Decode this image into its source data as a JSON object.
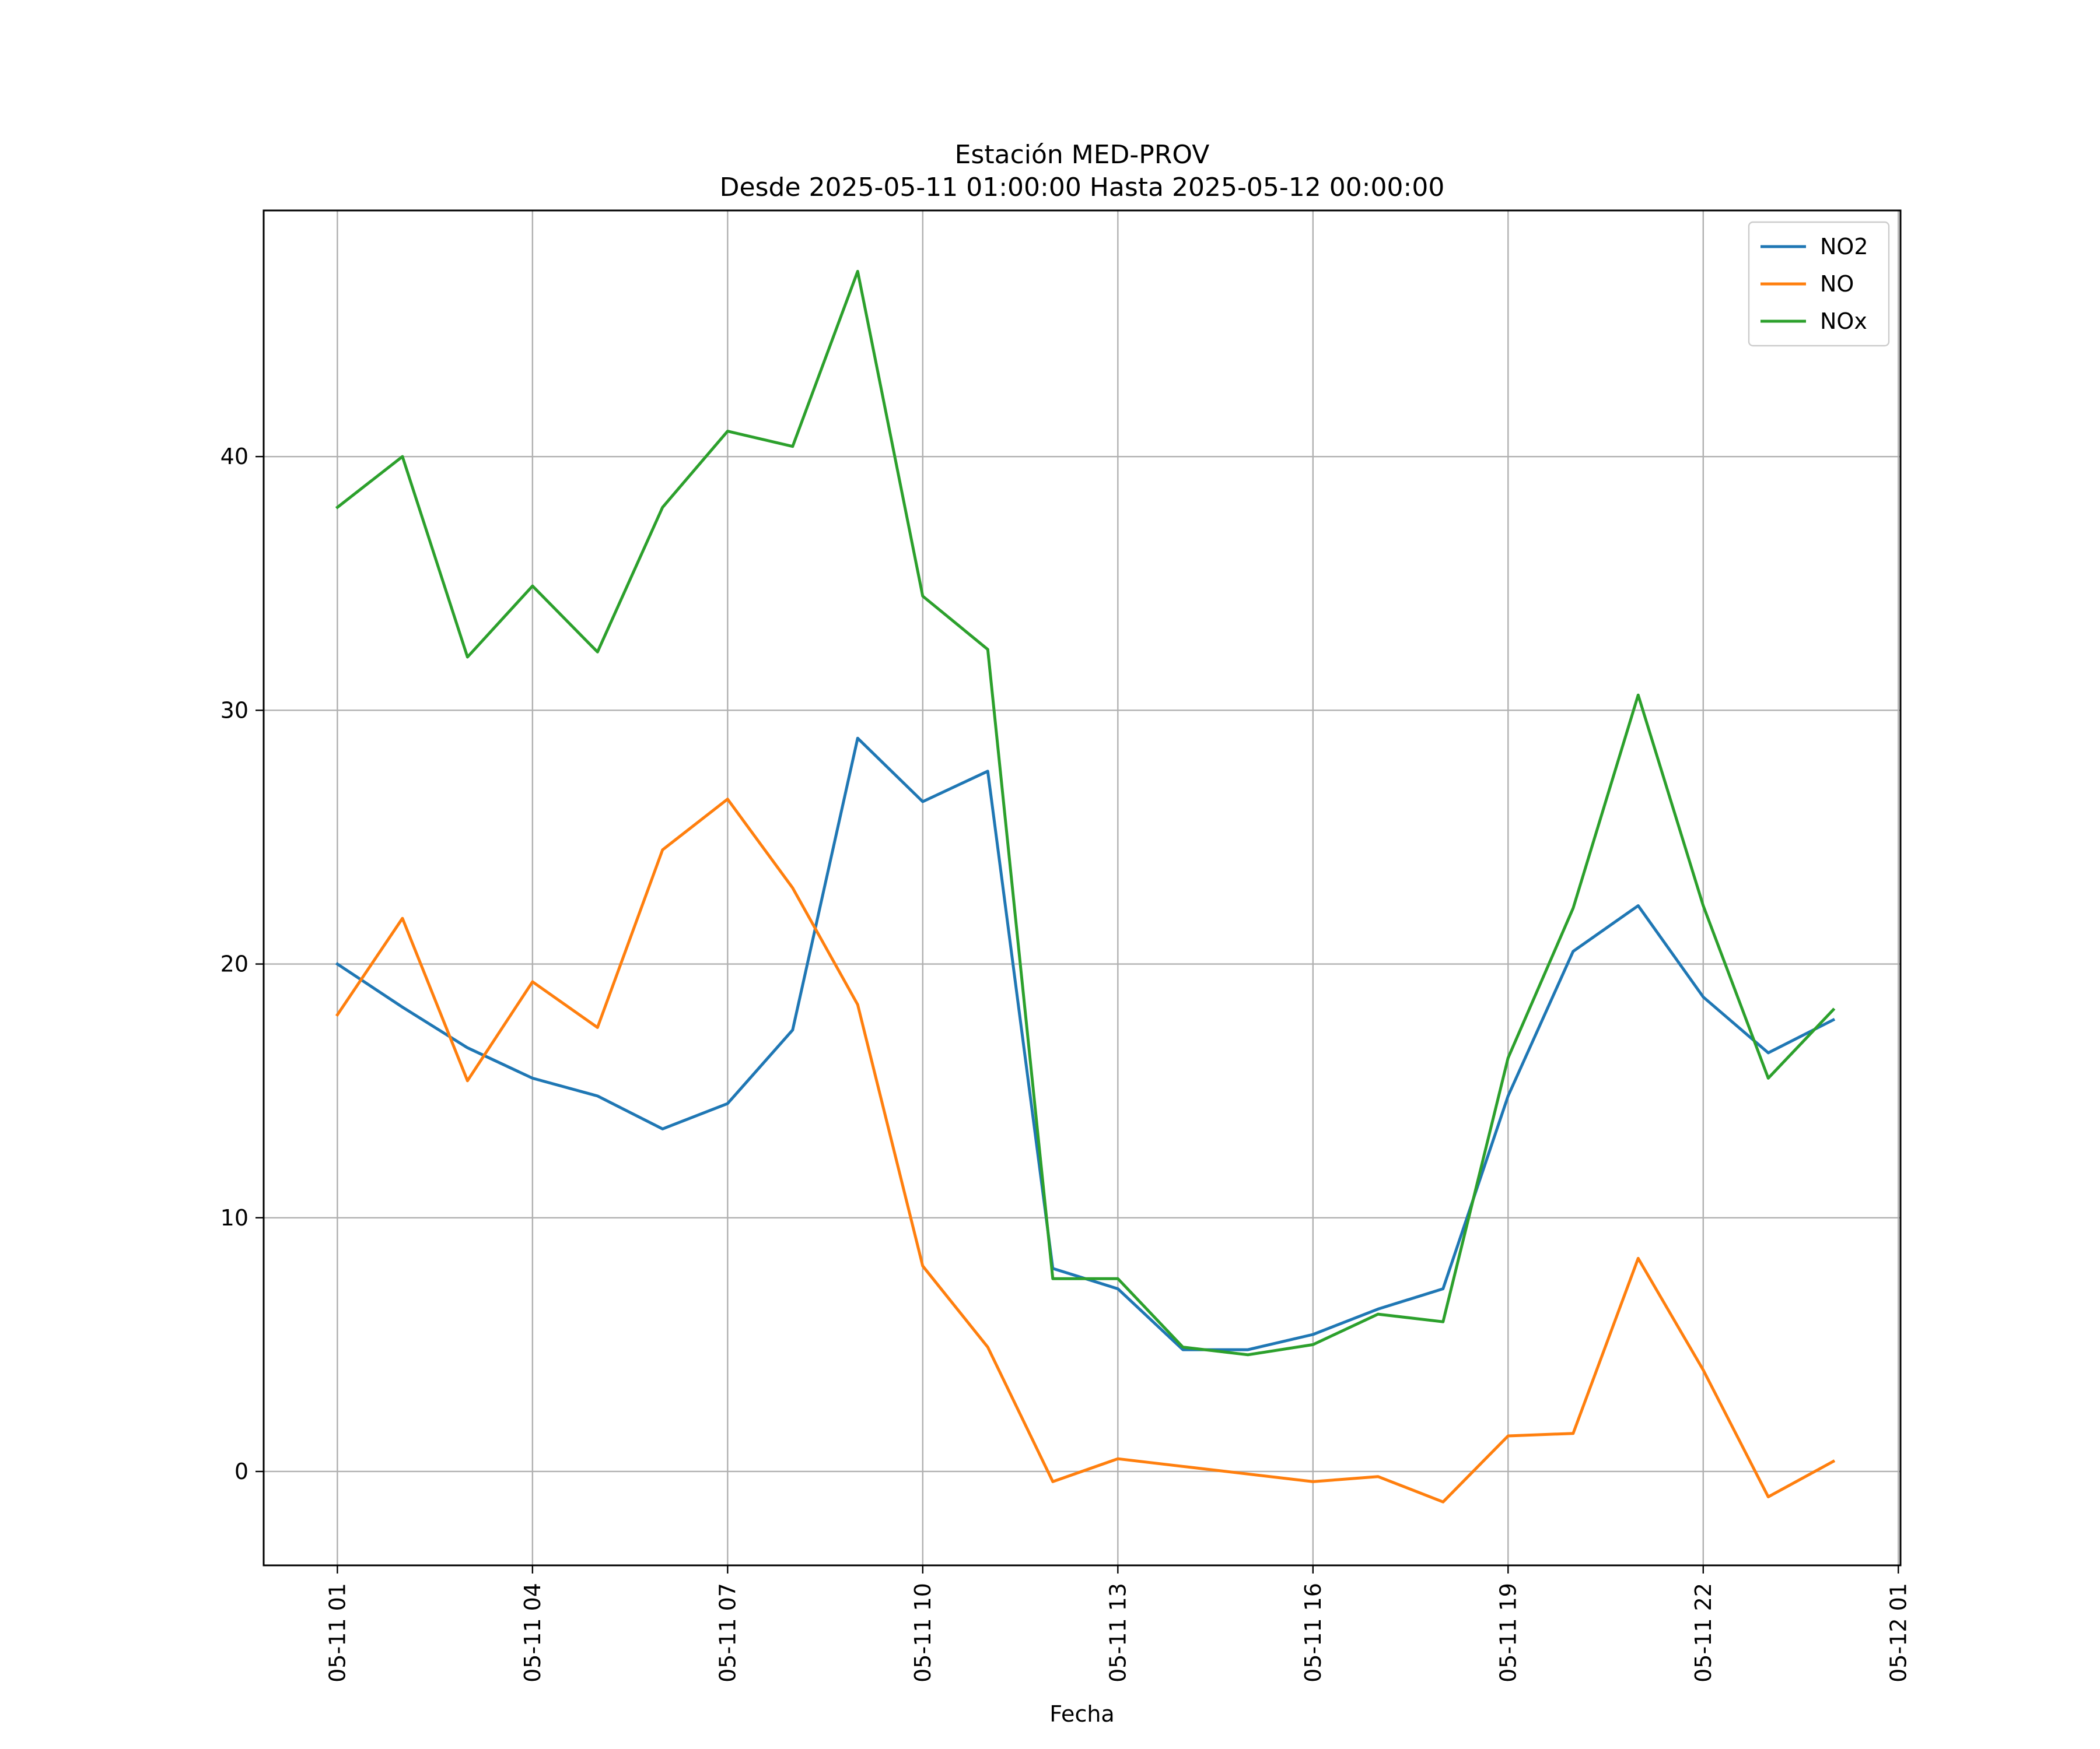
{
  "chart_data": {
    "type": "line",
    "title": "Estación MED-PROV",
    "subtitle": "Desde 2025-05-11 01:00:00 Hasta 2025-05-12 00:00:00",
    "xlabel": "Fecha",
    "ylabel": "",
    "x": [
      "2025-05-11 01:00",
      "2025-05-11 02:00",
      "2025-05-11 03:00",
      "2025-05-11 04:00",
      "2025-05-11 05:00",
      "2025-05-11 06:00",
      "2025-05-11 07:00",
      "2025-05-11 08:00",
      "2025-05-11 09:00",
      "2025-05-11 10:00",
      "2025-05-11 11:00",
      "2025-05-11 12:00",
      "2025-05-11 13:00",
      "2025-05-11 14:00",
      "2025-05-11 15:00",
      "2025-05-11 16:00",
      "2025-05-11 17:00",
      "2025-05-11 18:00",
      "2025-05-11 19:00",
      "2025-05-11 20:00",
      "2025-05-11 21:00",
      "2025-05-11 22:00",
      "2025-05-11 23:00",
      "2025-05-12 00:00"
    ],
    "xticks": [
      {
        "label": "05-11 01",
        "value": "2025-05-11 01:00"
      },
      {
        "label": "05-11 04",
        "value": "2025-05-11 04:00"
      },
      {
        "label": "05-11 07",
        "value": "2025-05-11 07:00"
      },
      {
        "label": "05-11 10",
        "value": "2025-05-11 10:00"
      },
      {
        "label": "05-11 13",
        "value": "2025-05-11 13:00"
      },
      {
        "label": "05-11 16",
        "value": "2025-05-11 16:00"
      },
      {
        "label": "05-11 19",
        "value": "2025-05-11 19:00"
      },
      {
        "label": "05-11 22",
        "value": "2025-05-11 22:00"
      },
      {
        "label": "05-12 01",
        "value": "2025-05-12 01:00"
      }
    ],
    "xlim": [
      "2025-05-10 23:52",
      "2025-05-12 01:02"
    ],
    "yticks": [
      0,
      10,
      20,
      30,
      40
    ],
    "ylim": [
      -3.7,
      49.7
    ],
    "grid": true,
    "legend_position": "top-right",
    "series": [
      {
        "name": "NO2",
        "color": "#1f77b4",
        "values": [
          20.0,
          18.3,
          16.7,
          15.5,
          14.8,
          13.5,
          14.5,
          17.4,
          28.9,
          26.4,
          27.6,
          8.0,
          7.2,
          4.8,
          4.8,
          5.4,
          6.4,
          7.2,
          14.8,
          20.5,
          22.3,
          18.7,
          16.5,
          17.8
        ]
      },
      {
        "name": "NO",
        "color": "#ff7f0e",
        "values": [
          18.0,
          21.8,
          15.4,
          19.3,
          17.5,
          24.5,
          26.5,
          23.0,
          18.4,
          8.1,
          4.9,
          -0.4,
          0.5,
          0.2,
          -0.1,
          -0.4,
          -0.2,
          -1.2,
          1.4,
          1.5,
          8.4,
          4.0,
          -1.0,
          0.4
        ]
      },
      {
        "name": "NOx",
        "color": "#2ca02c",
        "values": [
          38.0,
          40.0,
          32.1,
          34.9,
          32.3,
          38.0,
          41.0,
          40.4,
          47.3,
          34.5,
          32.4,
          7.6,
          7.6,
          4.9,
          4.6,
          5.0,
          6.2,
          5.9,
          16.3,
          22.2,
          30.6,
          22.3,
          15.5,
          18.2
        ]
      }
    ]
  }
}
